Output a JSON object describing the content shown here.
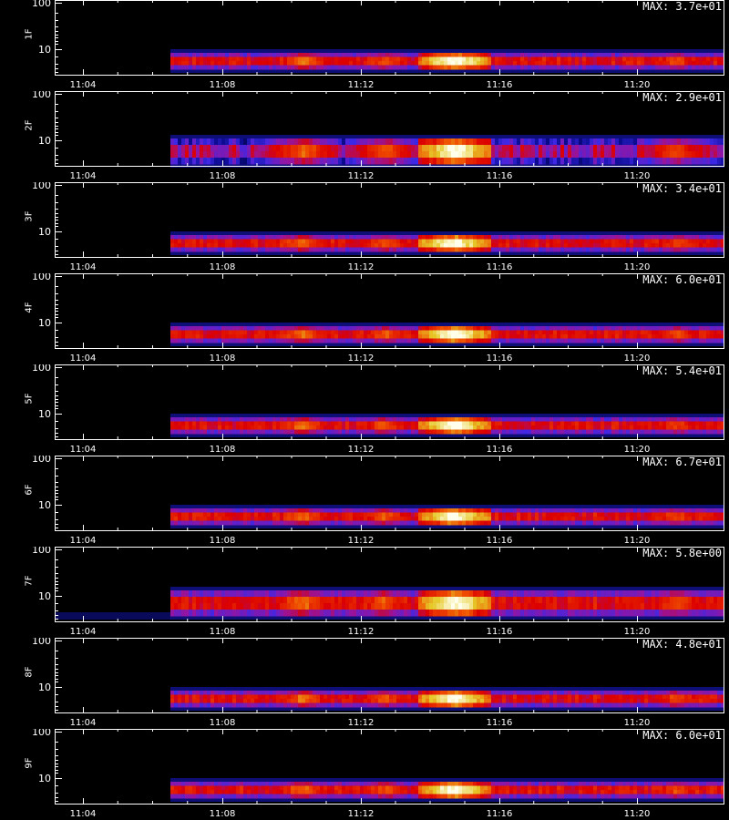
{
  "chart_data": {
    "type": "heatmap",
    "x_ticks": [
      "11:04",
      "11:08",
      "11:12",
      "11:16",
      "11:20"
    ],
    "y_ticks": [
      "100",
      "10"
    ],
    "x_range": [
      "11:03",
      "11:22"
    ],
    "panels": [
      {
        "label": "1F",
        "max_label": "MAX: 3.7e+01"
      },
      {
        "label": "2F",
        "max_label": "MAX: 2.9e+01"
      },
      {
        "label": "3F",
        "max_label": "MAX: 3.4e+01"
      },
      {
        "label": "4F",
        "max_label": "MAX: 6.0e+01"
      },
      {
        "label": "5F",
        "max_label": "MAX: 5.4e+01"
      },
      {
        "label": "6F",
        "max_label": "MAX: 6.7e+01"
      },
      {
        "label": "7F",
        "max_label": "MAX: 5.8e+00"
      },
      {
        "label": "8F",
        "max_label": "MAX: 4.8e+01"
      },
      {
        "label": "9F",
        "max_label": "MAX: 6.0e+01"
      }
    ]
  }
}
